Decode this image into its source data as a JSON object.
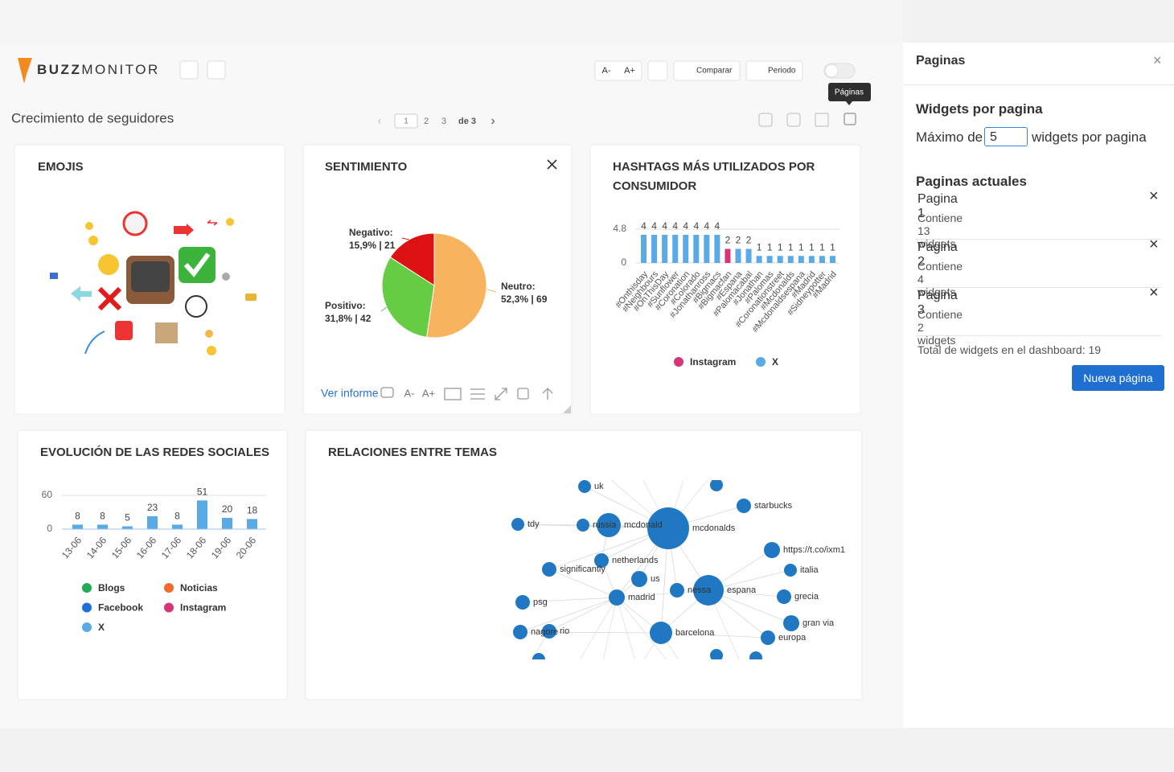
{
  "header": {
    "brand_bold": "BUZZ",
    "brand_light": "MONITOR",
    "toolbar": [
      "A-",
      "A+",
      "Comparar",
      "Periodo"
    ],
    "tooltip": "Páginas"
  },
  "dashboard": {
    "title": "Crecimiento de seguidores",
    "pages": [
      "1",
      "2",
      "3"
    ],
    "page_count": "de 3"
  },
  "widgets": {
    "emojis": {
      "title": "EMOJIS"
    },
    "sentiment": {
      "title": "SENTIMIENTO",
      "chart": {
        "type": "pie",
        "categories": [
          "Neutro:",
          "Positivo:",
          "Negativo:"
        ],
        "values": [
          52.3,
          31.8,
          15.9
        ],
        "value_labels": [
          "52,3% | 69",
          "31,8% | 42",
          "15,9% | 21"
        ],
        "colors": [
          "#f7b35e",
          "#66cc44",
          "#dd1111"
        ]
      },
      "footer": {
        "link": "Ver informe",
        "font_small": "A-",
        "font_large": "A+"
      }
    },
    "hashtags": {
      "title": "HASHTAGS MÁS UTILIZADOS POR CONSUMIDOR",
      "chart": {
        "type": "bar",
        "categories": [
          "#Onthisday",
          "#Neighbours",
          "#OnThisDay",
          "#Sunflower",
          "#Coronation",
          "#Colorado",
          "#Jonathanross",
          "#Bigmacs",
          "#Bigmacfan",
          "#Espana",
          "#Palomacabal",
          "#Jonathan",
          "#Palomas",
          "#Coronationstreet",
          "#Mcdonalds",
          "#Mcdonaldsespana",
          "#Madrid",
          "#Sidneypotter",
          "#Madrid"
        ],
        "series": [
          {
            "name": "Instagram",
            "color": "#d6357a",
            "values": [
              null,
              null,
              null,
              null,
              null,
              null,
              null,
              null,
              2,
              null,
              null,
              null,
              null,
              null,
              null,
              null,
              null,
              null,
              null
            ]
          },
          {
            "name": "X",
            "color": "#5aaae6",
            "values": [
              4,
              4,
              4,
              4,
              4,
              4,
              4,
              4,
              null,
              2,
              2,
              1,
              1,
              1,
              1,
              1,
              1,
              1,
              1
            ]
          }
        ],
        "ylim": [
          0,
          4.8
        ],
        "yticks": [
          0,
          4.8
        ],
        "grid": true
      }
    },
    "evolution": {
      "title": "EVOLUCIÓN DE LAS REDES SOCIALES",
      "chart": {
        "type": "bar",
        "categories": [
          "13-06",
          "14-06",
          "15-06",
          "16-06",
          "17-06",
          "18-06",
          "19-06",
          "20-06"
        ],
        "series": [
          {
            "name": "Blogs",
            "color": "#22aa55",
            "values": [
              null,
              null,
              null,
              null,
              null,
              null,
              null,
              null
            ]
          },
          {
            "name": "Noticias",
            "color": "#f26a2e",
            "values": [
              null,
              null,
              null,
              null,
              null,
              null,
              null,
              null
            ]
          },
          {
            "name": "Facebook",
            "color": "#1e6fd6",
            "values": [
              null,
              null,
              null,
              null,
              null,
              null,
              null,
              null
            ]
          },
          {
            "name": "Instagram",
            "color": "#d6357a",
            "values": [
              null,
              null,
              null,
              null,
              null,
              null,
              null,
              null
            ]
          },
          {
            "name": "X",
            "color": "#5aaae6",
            "values": [
              8,
              8,
              5,
              23,
              8,
              51,
              20,
              18
            ]
          }
        ],
        "ylim": [
          0,
          60
        ],
        "yticks": [
          0,
          60
        ],
        "grid": true
      }
    },
    "relations": {
      "title": "RELACIONES ENTRE TEMAS",
      "nodes": [
        "uk",
        "tdy",
        "russia",
        "mcdonald",
        "mcdonalds",
        "starbucks",
        "https://t.co/ixm1",
        "netherlands",
        "significantly",
        "us",
        "italia",
        "nessa",
        "espana",
        "psg",
        "madrid",
        "grecia",
        "gran via",
        "nagore",
        "rio",
        "barcelona",
        "europa"
      ]
    }
  },
  "panel": {
    "title": "Paginas",
    "section": "Widgets por pagina",
    "max_prefix": "Máximo de",
    "max_value": 5,
    "max_suffix": "widgets por pagina",
    "current_title": "Paginas actuales",
    "pages": [
      {
        "name": "Pagina 1",
        "info": "Contiene 13 widgets"
      },
      {
        "name": "Pagina 2",
        "info": "Contiene 4 widgets"
      },
      {
        "name": "Pagina 3",
        "info": "Contiene 2 widgets"
      }
    ],
    "total": "Total de widgets en el dashboard: 19",
    "button": "Nueva página"
  }
}
